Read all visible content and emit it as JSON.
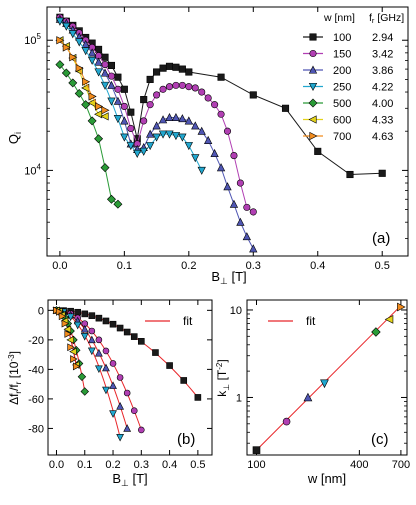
{
  "chart_data": [
    {
      "id": "a",
      "type": "line",
      "panel_label": "(a)",
      "ylabel": "Q",
      "ylabel_sub": "i",
      "xlabel": "B",
      "xlabel_sub": "⊥",
      "xlabel_unit": " [T]",
      "x_scale": "linear",
      "y_scale": "log",
      "xlim": [
        -0.02,
        0.54
      ],
      "ylim": [
        2200,
        180000
      ],
      "xticks": [
        0.0,
        0.1,
        0.2,
        0.3,
        0.4,
        0.5
      ],
      "xtick_labels": [
        "0.0",
        "0.1",
        "0.2",
        "0.3",
        "0.4",
        "0.5"
      ],
      "yticks": [
        10000,
        100000
      ],
      "ytick_labels": [
        {
          "base": "10",
          "exp": "4"
        },
        {
          "base": "10",
          "exp": "5"
        }
      ],
      "legend_position": "top-right",
      "legend_header": {
        "w": "w [nm]",
        "f_main": "f",
        "f_sub": "r",
        "f_unit": " [GHz]"
      },
      "series": [
        {
          "name": "100",
          "freq": "2.94",
          "color": "#1a1a1a",
          "marker": "square",
          "x": [
            0.0,
            0.01,
            0.02,
            0.03,
            0.04,
            0.05,
            0.06,
            0.07,
            0.08,
            0.09,
            0.1,
            0.11,
            0.12,
            0.13,
            0.14,
            0.15,
            0.16,
            0.17,
            0.18,
            0.19,
            0.2,
            0.25,
            0.3,
            0.35,
            0.4,
            0.45,
            0.5
          ],
          "y": [
            150000,
            140000,
            130000,
            118000,
            105000,
            95000,
            85000,
            74000,
            64000,
            52000,
            42000,
            28000,
            17500,
            35000,
            50000,
            57000,
            61000,
            63000,
            62000,
            60000,
            57000,
            52000,
            38000,
            30000,
            14000,
            9300,
            9500
          ]
        },
        {
          "name": "150",
          "freq": "3.42",
          "color": "#b13fb3",
          "marker": "circle",
          "x": [
            0.0,
            0.01,
            0.02,
            0.03,
            0.04,
            0.05,
            0.06,
            0.07,
            0.08,
            0.09,
            0.1,
            0.11,
            0.12,
            0.13,
            0.14,
            0.15,
            0.16,
            0.17,
            0.18,
            0.19,
            0.2,
            0.21,
            0.22,
            0.23,
            0.24,
            0.25,
            0.26,
            0.27,
            0.28,
            0.29,
            0.3
          ],
          "y": [
            150000,
            140000,
            128000,
            114000,
            100000,
            88000,
            76000,
            65000,
            53000,
            42000,
            31000,
            21000,
            16000,
            24000,
            32000,
            38000,
            42000,
            44000,
            45000,
            45000,
            44000,
            43000,
            40000,
            36000,
            32000,
            27000,
            20000,
            13000,
            8000,
            5200,
            4800
          ]
        },
        {
          "name": "200",
          "freq": "3.86",
          "color": "#4f56b3",
          "marker": "triangle-up",
          "x": [
            0.0,
            0.01,
            0.02,
            0.03,
            0.04,
            0.05,
            0.06,
            0.07,
            0.08,
            0.09,
            0.1,
            0.11,
            0.12,
            0.13,
            0.14,
            0.15,
            0.16,
            0.17,
            0.18,
            0.19,
            0.2,
            0.21,
            0.22,
            0.23,
            0.24,
            0.25,
            0.26,
            0.27,
            0.28,
            0.29,
            0.3
          ],
          "y": [
            145000,
            135000,
            120000,
            106000,
            93000,
            80000,
            68000,
            56000,
            45000,
            34000,
            24000,
            16000,
            14500,
            15000,
            19000,
            22000,
            24500,
            25500,
            25500,
            25000,
            24000,
            22000,
            20000,
            17000,
            13500,
            10500,
            7500,
            5500,
            4000,
            3100,
            2500
          ]
        },
        {
          "name": "250",
          "freq": "4.22",
          "color": "#22a7cf",
          "marker": "triangle-down",
          "x": [
            0.0,
            0.01,
            0.02,
            0.03,
            0.04,
            0.05,
            0.06,
            0.07,
            0.08,
            0.09,
            0.1,
            0.11,
            0.12,
            0.13,
            0.14,
            0.15,
            0.16,
            0.17,
            0.18,
            0.19,
            0.2,
            0.21,
            0.22
          ],
          "y": [
            140000,
            128000,
            112000,
            97000,
            83000,
            70000,
            57000,
            45000,
            34000,
            25000,
            18000,
            15500,
            13500,
            14000,
            15500,
            18000,
            19000,
            19000,
            18500,
            18000,
            15500,
            12500,
            10000
          ]
        },
        {
          "name": "500",
          "freq": "4.00",
          "color": "#2a9b37",
          "marker": "diamond",
          "x": [
            0.0,
            0.01,
            0.02,
            0.03,
            0.04,
            0.05,
            0.06,
            0.07,
            0.08,
            0.09
          ],
          "y": [
            65000,
            56000,
            47000,
            39000,
            32000,
            24000,
            17500,
            10500,
            6000,
            5500
          ]
        },
        {
          "name": "600",
          "freq": "4.33",
          "color": "#e3d21b",
          "marker": "triangle-left",
          "x": [
            0.0,
            0.01,
            0.02,
            0.03,
            0.04,
            0.05,
            0.06,
            0.07
          ],
          "y": [
            100000,
            90000,
            73000,
            58000,
            43000,
            33000,
            27000,
            26000
          ]
        },
        {
          "name": "700",
          "freq": "4.63",
          "color": "#f28c1e",
          "marker": "triangle-right",
          "x": [
            0.0,
            0.01,
            0.02,
            0.03,
            0.04,
            0.05,
            0.06,
            0.07
          ],
          "y": [
            100000,
            88000,
            74000,
            61000,
            48000,
            37000,
            31000,
            29000
          ]
        }
      ]
    },
    {
      "id": "b",
      "type": "scatter",
      "panel_label": "(b)",
      "ylabel": "Δf",
      "ylabel_sub": "r",
      "ylabel_mid": "/f",
      "ylabel_sub2": "r",
      "ylabel_unit": " [10",
      "ylabel_exp": "-3",
      "ylabel_close": "]",
      "xlabel": "B",
      "xlabel_sub": "⊥",
      "xlabel_unit": " [T]",
      "xlim": [
        -0.03,
        0.55
      ],
      "ylim": [
        -98,
        7
      ],
      "xticks": [
        0.0,
        0.1,
        0.2,
        0.3,
        0.4,
        0.5
      ],
      "xtick_labels": [
        "0.0",
        "0.1",
        "0.2",
        "0.3",
        "0.4",
        "0.5"
      ],
      "yticks": [
        0,
        -20,
        -40,
        -60,
        -80
      ],
      "ytick_labels": [
        "0",
        "-20",
        "-40",
        "-60",
        "-80"
      ],
      "legend_position": "top-right",
      "legend_fit_label": "fit",
      "fit_color": "#e8262a",
      "series": [
        {
          "name": "100",
          "color": "#1a1a1a",
          "marker": "square",
          "x": [
            0.0,
            0.025,
            0.05,
            0.075,
            0.1,
            0.125,
            0.15,
            0.175,
            0.2,
            0.225,
            0.25,
            0.275,
            0.3,
            0.35,
            0.4,
            0.45,
            0.5
          ],
          "y": [
            0,
            -0.2,
            -0.6,
            -1.3,
            -2.4,
            -3.6,
            -5.3,
            -7.2,
            -9.4,
            -12,
            -14.7,
            -17.8,
            -21,
            -28.6,
            -37.4,
            -47.5,
            -59
          ]
        },
        {
          "name": "150",
          "color": "#b13fb3",
          "marker": "circle",
          "x": [
            0.0,
            0.025,
            0.05,
            0.075,
            0.1,
            0.125,
            0.15,
            0.175,
            0.2,
            0.225,
            0.25,
            0.275,
            0.3
          ],
          "y": [
            0,
            -0.6,
            -2.2,
            -5.1,
            -9,
            -14,
            -20,
            -27.5,
            -36,
            -45.5,
            -56,
            -68,
            -81
          ]
        },
        {
          "name": "200",
          "color": "#4f56b3",
          "marker": "triangle-up",
          "x": [
            0.0,
            0.025,
            0.05,
            0.075,
            0.1,
            0.125,
            0.15,
            0.175,
            0.2,
            0.225,
            0.25
          ],
          "y": [
            0,
            -0.8,
            -3.2,
            -7.2,
            -12.8,
            -20,
            -29,
            -39,
            -51,
            -65,
            -80
          ]
        },
        {
          "name": "250",
          "color": "#22a7cf",
          "marker": "triangle-down",
          "x": [
            0.0,
            0.025,
            0.05,
            0.075,
            0.1,
            0.125,
            0.15,
            0.175,
            0.2,
            0.225
          ],
          "y": [
            0,
            -1.1,
            -4.4,
            -10,
            -17.6,
            -27.5,
            -39.6,
            -54,
            -70,
            -86
          ]
        },
        {
          "name": "500",
          "color": "#2a9b37",
          "marker": "diamond",
          "x": [
            0.0,
            0.01,
            0.02,
            0.03,
            0.04,
            0.05,
            0.06,
            0.07,
            0.08,
            0.09,
            0.1
          ],
          "y": [
            0,
            -0.6,
            -2.2,
            -5,
            -8.9,
            -14,
            -20,
            -27,
            -36,
            -45,
            -55
          ]
        },
        {
          "name": "600",
          "color": "#e3d21b",
          "marker": "triangle-left",
          "x": [
            0.0,
            0.01,
            0.02,
            0.03,
            0.04,
            0.05,
            0.06,
            0.07
          ],
          "y": [
            0,
            -0.8,
            -3.2,
            -7.2,
            -12.8,
            -20,
            -28,
            -37
          ]
        },
        {
          "name": "700",
          "color": "#f28c1e",
          "marker": "triangle-right",
          "x": [
            0.0,
            0.01,
            0.02,
            0.03,
            0.04,
            0.05,
            0.06,
            0.07
          ],
          "y": [
            0,
            -1,
            -4,
            -9,
            -16,
            -25,
            -33,
            -38
          ]
        }
      ]
    },
    {
      "id": "c",
      "type": "scatter",
      "panel_label": "(c)",
      "ylabel": "k",
      "ylabel_sub": "⊥",
      "ylabel_unit": " [T",
      "ylabel_exp": "-2",
      "ylabel_close": "]",
      "xlabel": "w [nm]",
      "x_scale": "log",
      "y_scale": "log",
      "xlim": [
        88,
        760
      ],
      "ylim": [
        0.22,
        13
      ],
      "xticks": [
        100,
        400,
        700
      ],
      "xtick_labels": [
        "100",
        "400",
        "700"
      ],
      "yticks": [
        1,
        10
      ],
      "ytick_labels": [
        "1",
        "10"
      ],
      "legend_position": "top-left",
      "legend_fit_label": "fit",
      "fit_color": "#e8262a",
      "fit_line": {
        "x": [
          100,
          700
        ],
        "y": [
          0.25,
          11.2
        ]
      },
      "points": [
        {
          "name": "100",
          "x": 100,
          "y": 0.25,
          "color": "#1a1a1a",
          "marker": "square"
        },
        {
          "name": "150",
          "x": 150,
          "y": 0.53,
          "color": "#b13fb3",
          "marker": "circle"
        },
        {
          "name": "200",
          "x": 200,
          "y": 1.0,
          "color": "#4f56b3",
          "marker": "triangle-up"
        },
        {
          "name": "250",
          "x": 250,
          "y": 1.45,
          "color": "#22a7cf",
          "marker": "triangle-down"
        },
        {
          "name": "500",
          "x": 500,
          "y": 5.6,
          "color": "#2a9b37",
          "marker": "diamond"
        },
        {
          "name": "600",
          "x": 600,
          "y": 7.8,
          "color": "#e3d21b",
          "marker": "triangle-left"
        },
        {
          "name": "700",
          "x": 700,
          "y": 10.8,
          "color": "#f28c1e",
          "marker": "triangle-right"
        }
      ]
    }
  ]
}
